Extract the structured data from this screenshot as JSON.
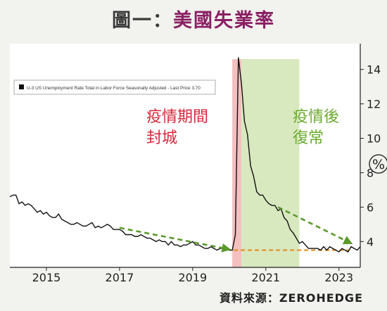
{
  "title": {
    "prefix": "圖一：",
    "main": "美國失業率"
  },
  "source": "資料來源：ZEROHEDGE",
  "unit_label": "%",
  "chart_data": {
    "type": "line",
    "title": "美國失業率",
    "legend": "U-3 US Unemployment Rate Total in Labor Force Seasonally Adjusted - Last Price 3.70",
    "legend_position": "top-left",
    "xlabel": "",
    "ylabel": "%",
    "x_ticks": [
      "2015",
      "2017",
      "2019",
      "2021",
      "2023"
    ],
    "y_ticks": [
      4,
      6,
      8,
      10,
      12,
      14
    ],
    "xlim": [
      "2014-01",
      "2023-08"
    ],
    "ylim": [
      2.5,
      15.5
    ],
    "grid": false,
    "series": [
      {
        "name": "U-3 US Unemployment Rate Total in Labor Force Seasonally Adjusted",
        "x": [
          "2014-01",
          "2014-02",
          "2014-03",
          "2014-04",
          "2014-05",
          "2014-06",
          "2014-07",
          "2014-08",
          "2014-09",
          "2014-10",
          "2014-11",
          "2014-12",
          "2015-01",
          "2015-02",
          "2015-03",
          "2015-04",
          "2015-05",
          "2015-06",
          "2015-07",
          "2015-08",
          "2015-09",
          "2015-10",
          "2015-11",
          "2015-12",
          "2016-01",
          "2016-02",
          "2016-03",
          "2016-04",
          "2016-05",
          "2016-06",
          "2016-07",
          "2016-08",
          "2016-09",
          "2016-10",
          "2016-11",
          "2016-12",
          "2017-01",
          "2017-02",
          "2017-03",
          "2017-04",
          "2017-05",
          "2017-06",
          "2017-07",
          "2017-08",
          "2017-09",
          "2017-10",
          "2017-11",
          "2017-12",
          "2018-01",
          "2018-02",
          "2018-03",
          "2018-04",
          "2018-05",
          "2018-06",
          "2018-07",
          "2018-08",
          "2018-09",
          "2018-10",
          "2018-11",
          "2018-12",
          "2019-01",
          "2019-02",
          "2019-03",
          "2019-04",
          "2019-05",
          "2019-06",
          "2019-07",
          "2019-08",
          "2019-09",
          "2019-10",
          "2019-11",
          "2019-12",
          "2020-01",
          "2020-02",
          "2020-03",
          "2020-04",
          "2020-05",
          "2020-06",
          "2020-07",
          "2020-08",
          "2020-09",
          "2020-10",
          "2020-11",
          "2020-12",
          "2021-01",
          "2021-02",
          "2021-03",
          "2021-04",
          "2021-05",
          "2021-06",
          "2021-07",
          "2021-08",
          "2021-09",
          "2021-10",
          "2021-11",
          "2021-12",
          "2022-01",
          "2022-02",
          "2022-03",
          "2022-04",
          "2022-05",
          "2022-06",
          "2022-07",
          "2022-08",
          "2022-09",
          "2022-10",
          "2022-11",
          "2022-12",
          "2023-01",
          "2023-02",
          "2023-03",
          "2023-04",
          "2023-05",
          "2023-06",
          "2023-07",
          "2023-08"
        ],
        "values": [
          6.6,
          6.7,
          6.7,
          6.2,
          6.3,
          6.1,
          6.2,
          6.1,
          5.9,
          5.7,
          5.8,
          5.6,
          5.7,
          5.5,
          5.4,
          5.4,
          5.6,
          5.3,
          5.2,
          5.1,
          5.0,
          5.0,
          5.1,
          5.0,
          4.9,
          4.9,
          5.0,
          5.1,
          4.8,
          4.9,
          4.8,
          4.9,
          5.0,
          4.9,
          4.7,
          4.7,
          4.7,
          4.6,
          4.4,
          4.4,
          4.4,
          4.3,
          4.3,
          4.4,
          4.3,
          4.2,
          4.2,
          4.1,
          4.0,
          4.1,
          4.0,
          4.0,
          3.8,
          4.0,
          3.8,
          3.8,
          3.7,
          3.8,
          3.8,
          3.9,
          4.0,
          3.8,
          3.8,
          3.7,
          3.6,
          3.6,
          3.7,
          3.6,
          3.5,
          3.6,
          3.6,
          3.6,
          3.5,
          3.5,
          4.4,
          14.7,
          13.2,
          11.0,
          10.2,
          8.4,
          7.8,
          6.9,
          6.7,
          6.7,
          6.4,
          6.2,
          6.1,
          6.1,
          5.8,
          5.9,
          5.4,
          5.2,
          4.7,
          4.5,
          4.2,
          3.9,
          4.0,
          3.8,
          3.6,
          3.6,
          3.6,
          3.6,
          3.5,
          3.7,
          3.5,
          3.7,
          3.6,
          3.5,
          3.4,
          3.6,
          3.5,
          3.4,
          3.7,
          3.6,
          3.5,
          3.7
        ]
      }
    ],
    "shaded_regions": [
      {
        "label": "疫情期間 封城",
        "label_lines": [
          "疫情期間",
          "封城"
        ],
        "start": "2020-02",
        "end": "2020-05",
        "color": "#f2b8b8",
        "label_color": "#d8283c"
      },
      {
        "label": "疫情後 復常",
        "label_lines": [
          "疫情後",
          "復常"
        ],
        "start": "2020-05",
        "end": "2021-12",
        "color": "#d4e6b8",
        "label_color": "#6aaa2c"
      }
    ],
    "reference_line": {
      "value": 3.5,
      "color": "#e08a1e",
      "style": "dashed"
    },
    "trend_arrows": [
      {
        "from": [
          "2017-01",
          4.8
        ],
        "to": [
          "2020-01",
          3.55
        ],
        "color": "#5a9a2c",
        "style": "dashed"
      },
      {
        "from": [
          "2021-05",
          6.0
        ],
        "to": [
          "2023-05",
          3.9
        ],
        "color": "#5a9a2c",
        "style": "dashed"
      }
    ]
  }
}
